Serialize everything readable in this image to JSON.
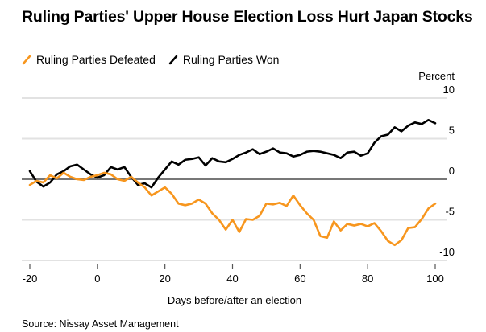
{
  "title": "Ruling Parties' Upper House Election Loss Hurt Japan Stocks",
  "source": "Source: Nissay Asset Management",
  "chart_data": {
    "type": "line",
    "title": "Ruling Parties' Upper House Election Loss Hurt Japan Stocks",
    "xlabel": "Days before/after an election",
    "ylabel": "Percent",
    "xlim": [
      -20,
      100
    ],
    "ylim": [
      -10,
      10
    ],
    "xticks": [
      -20,
      0,
      20,
      40,
      60,
      80,
      100
    ],
    "yticks": [
      10,
      5,
      0,
      -5,
      -10
    ],
    "grid": true,
    "legend_position": "top-left",
    "x": [
      -20,
      -18,
      -16,
      -14,
      -12,
      -10,
      -8,
      -6,
      -4,
      -2,
      0,
      2,
      4,
      6,
      8,
      10,
      12,
      14,
      16,
      18,
      20,
      22,
      24,
      26,
      28,
      30,
      32,
      34,
      36,
      38,
      40,
      42,
      44,
      46,
      48,
      50,
      52,
      54,
      56,
      58,
      60,
      62,
      64,
      66,
      68,
      70,
      72,
      74,
      76,
      78,
      80,
      82,
      84,
      86,
      88,
      90,
      92,
      94,
      96,
      98,
      100
    ],
    "series": [
      {
        "name": "Ruling Parties Defeated",
        "color": "#f7961e",
        "values": [
          -0.7,
          -0.2,
          -0.4,
          0.5,
          0.1,
          0.8,
          0.3,
          0.0,
          -0.1,
          0.3,
          0.5,
          0.8,
          0.6,
          0.0,
          -0.2,
          0.3,
          -0.4,
          -1.0,
          -2.0,
          -1.5,
          -1.0,
          -1.8,
          -3.0,
          -3.2,
          -3.0,
          -2.5,
          -3.0,
          -4.2,
          -5.0,
          -6.2,
          -5.0,
          -6.5,
          -4.9,
          -5.0,
          -4.5,
          -3.0,
          -3.1,
          -2.9,
          -3.3,
          -2.0,
          -3.2,
          -4.2,
          -5.0,
          -7.0,
          -7.2,
          -5.2,
          -6.3,
          -5.5,
          -5.7,
          -5.5,
          -5.8,
          -5.4,
          -6.4,
          -7.6,
          -8.1,
          -7.5,
          -6.0,
          -5.9,
          -4.9,
          -3.6,
          -3.0
        ]
      },
      {
        "name": "Ruling Parties Won",
        "color": "#000000",
        "values": [
          1.0,
          -0.3,
          -0.9,
          -0.4,
          0.6,
          1.0,
          1.6,
          1.8,
          1.2,
          0.6,
          0.2,
          0.5,
          1.5,
          1.2,
          1.5,
          0.3,
          -0.7,
          -0.5,
          -1.0,
          0.2,
          1.2,
          2.2,
          1.8,
          2.4,
          2.5,
          2.7,
          1.7,
          2.6,
          2.2,
          2.1,
          2.5,
          3.0,
          3.3,
          3.7,
          3.1,
          3.4,
          3.8,
          3.3,
          3.2,
          2.8,
          3.0,
          3.4,
          3.5,
          3.4,
          3.2,
          3.0,
          2.6,
          3.3,
          3.4,
          2.9,
          3.2,
          4.5,
          5.3,
          5.5,
          6.4,
          5.9,
          6.6,
          7.0,
          6.8,
          7.3,
          6.9
        ]
      }
    ]
  },
  "chart_data_note_tail": {
    "defeated_tail": [
      -2.0,
      -1.2,
      -0.6,
      -0.5,
      -1.5,
      -2.3,
      -2.1,
      -2.5
    ],
    "won_tail": [
      6.9,
      7.0,
      6.7,
      7.2,
      6.8,
      6.7,
      7.0
    ]
  },
  "legend": [
    {
      "label": "Ruling Parties Defeated",
      "color": "#f7961e"
    },
    {
      "label": "Ruling Parties Won",
      "color": "#000000"
    }
  ]
}
